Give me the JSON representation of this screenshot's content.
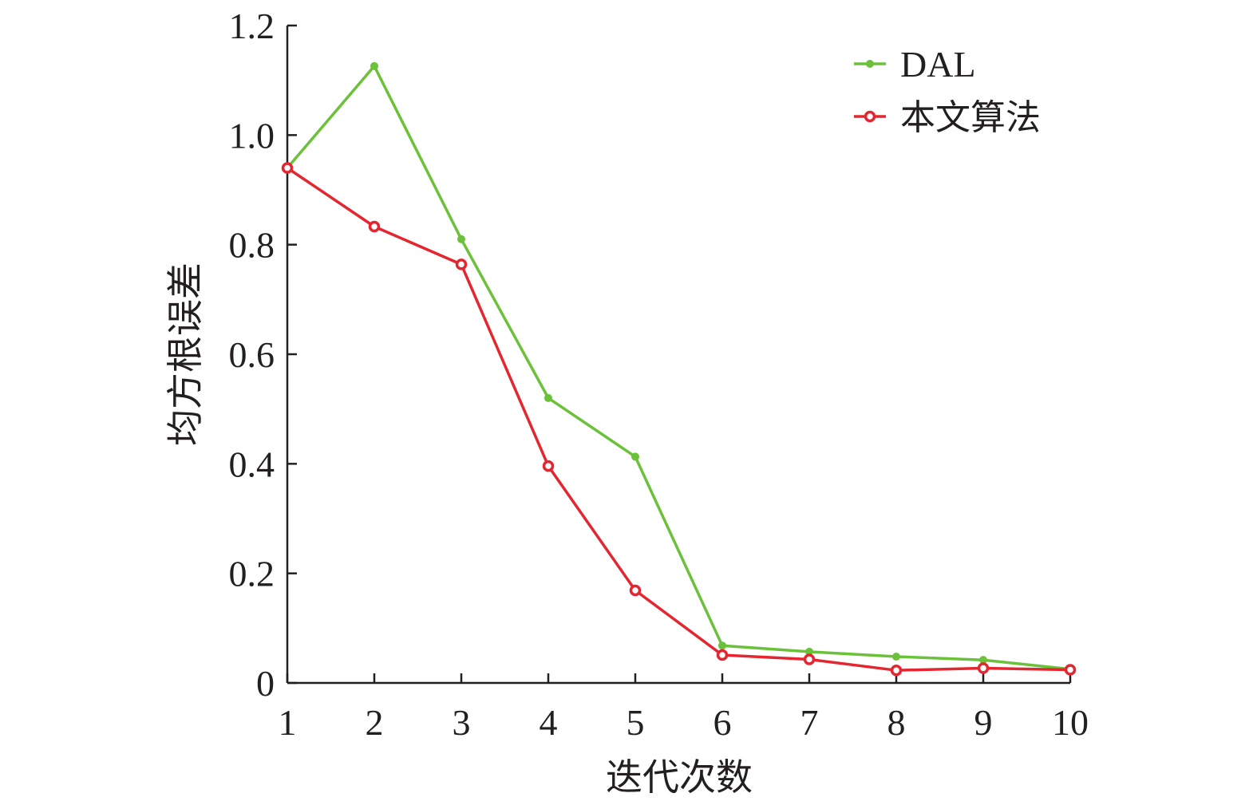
{
  "chart_data": {
    "type": "line",
    "title": "",
    "xlabel": "迭代次数",
    "ylabel": "均方根误差",
    "x": [
      1,
      2,
      3,
      4,
      5,
      6,
      7,
      8,
      9,
      10
    ],
    "x_tick_labels": [
      "1",
      "2",
      "3",
      "4",
      "5",
      "6",
      "7",
      "8",
      "9",
      "10"
    ],
    "ylim": [
      0,
      1.2
    ],
    "y_ticks": [
      0,
      0.2,
      0.4,
      0.6,
      0.8,
      1.0,
      1.2
    ],
    "y_tick_labels": [
      "0",
      "0.2",
      "0.4",
      "0.6",
      "0.8",
      "1.0",
      "1.2"
    ],
    "grid": false,
    "legend_position": "top-right",
    "series": [
      {
        "name": "DAL",
        "color": "#6cc13a",
        "marker": "dot",
        "values": [
          0.94,
          1.126,
          0.81,
          0.52,
          0.413,
          0.068,
          0.057,
          0.048,
          0.042,
          0.025
        ]
      },
      {
        "name": "本文算法",
        "color": "#e3262f",
        "marker": "ring",
        "values": [
          0.94,
          0.833,
          0.764,
          0.396,
          0.169,
          0.051,
          0.043,
          0.023,
          0.027,
          0.024
        ]
      }
    ]
  }
}
